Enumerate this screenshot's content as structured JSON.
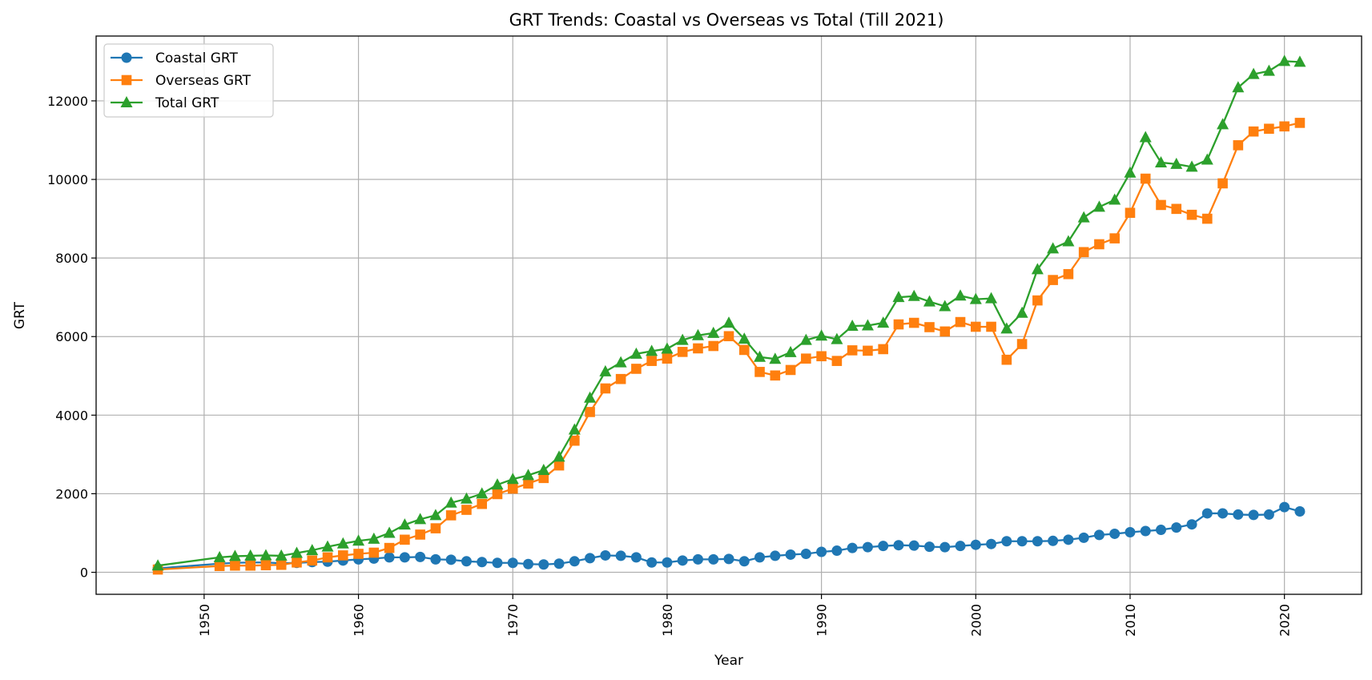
{
  "chart_data": {
    "type": "line",
    "title": "GRT Trends: Coastal vs Overseas vs Total (Till 2021)",
    "xlabel": "Year",
    "ylabel": "GRT",
    "xlim": [
      1943,
      2025
    ],
    "ylim": [
      -560,
      13650
    ],
    "x_ticks": [
      "1950",
      "1960",
      "1970",
      "1980",
      "1990",
      "2000",
      "2010",
      "2020"
    ],
    "y_ticks": [
      "0",
      "2000",
      "4000",
      "6000",
      "8000",
      "10000",
      "12000"
    ],
    "grid": true,
    "legend_position": "upper-left",
    "x": [
      1947,
      1951,
      1952,
      1953,
      1954,
      1955,
      1956,
      1957,
      1958,
      1959,
      1960,
      1961,
      1962,
      1963,
      1964,
      1965,
      1966,
      1967,
      1968,
      1969,
      1970,
      1971,
      1972,
      1973,
      1974,
      1975,
      1976,
      1977,
      1978,
      1979,
      1980,
      1981,
      1982,
      1983,
      1984,
      1985,
      1986,
      1987,
      1988,
      1989,
      1990,
      1991,
      1992,
      1993,
      1994,
      1995,
      1996,
      1997,
      1998,
      1999,
      2000,
      2001,
      2002,
      2003,
      2004,
      2005,
      2006,
      2007,
      2008,
      2009,
      2010,
      2011,
      2012,
      2013,
      2014,
      2015,
      2016,
      2017,
      2018,
      2019,
      2020,
      2021
    ],
    "series": [
      {
        "name": "Coastal GRT",
        "color": "#1f77b4",
        "marker": "circle",
        "values": [
          100,
          220,
          240,
          250,
          250,
          230,
          240,
          260,
          270,
          300,
          330,
          350,
          380,
          380,
          390,
          330,
          320,
          280,
          260,
          240,
          240,
          210,
          200,
          220,
          280,
          360,
          430,
          420,
          380,
          250,
          250,
          300,
          330,
          330,
          340,
          280,
          380,
          420,
          450,
          470,
          520,
          550,
          620,
          640,
          670,
          690,
          680,
          650,
          640,
          670,
          700,
          720,
          790,
          790,
          790,
          800,
          830,
          880,
          950,
          980,
          1020,
          1050,
          1080,
          1140,
          1220,
          1500,
          1500,
          1470,
          1460,
          1470,
          1660,
          1550
        ]
      },
      {
        "name": "Overseas GRT",
        "color": "#ff7f0e",
        "marker": "square",
        "values": [
          70,
          160,
          170,
          170,
          180,
          190,
          250,
          300,
          380,
          430,
          470,
          500,
          620,
          830,
          960,
          1120,
          1450,
          1590,
          1740,
          1990,
          2130,
          2260,
          2400,
          2720,
          3350,
          4080,
          4680,
          4920,
          5180,
          5380,
          5440,
          5610,
          5700,
          5760,
          6010,
          5660,
          5100,
          5010,
          5150,
          5440,
          5500,
          5380,
          5650,
          5640,
          5680,
          6310,
          6350,
          6240,
          6130,
          6370,
          6250,
          6250,
          5410,
          5810,
          6920,
          7440,
          7590,
          8150,
          8350,
          8500,
          9150,
          10020,
          9350,
          9250,
          9100,
          9000,
          9900,
          10870,
          11220,
          11290,
          11350,
          11440
        ]
      },
      {
        "name": "Total GRT",
        "color": "#2ca02c",
        "marker": "triangle",
        "values": [
          170,
          380,
          410,
          420,
          430,
          420,
          490,
          560,
          650,
          730,
          800,
          850,
          1000,
          1210,
          1350,
          1450,
          1770,
          1870,
          2000,
          2230,
          2370,
          2470,
          2600,
          2940,
          3630,
          4440,
          5110,
          5340,
          5560,
          5630,
          5690,
          5910,
          6030,
          6090,
          6350,
          5940,
          5480,
          5430,
          5600,
          5910,
          6020,
          5930,
          6270,
          6280,
          6350,
          7000,
          7030,
          6890,
          6770,
          7040,
          6950,
          6970,
          6200,
          6600,
          7710,
          8240,
          8420,
          9030,
          9300,
          9480,
          10170,
          11070,
          10430,
          10390,
          10320,
          10500,
          11400,
          12340,
          12680,
          12760,
          13010,
          12990
        ]
      }
    ]
  }
}
